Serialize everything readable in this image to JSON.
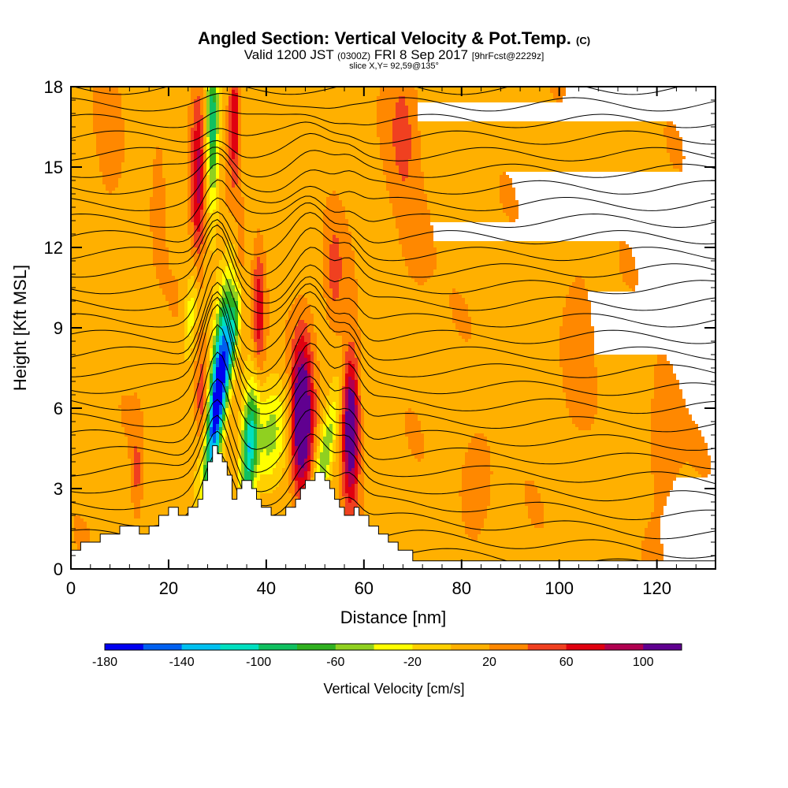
{
  "title_main": "Angled Section: Vertical Velocity & Pot.Temp.",
  "title_unit": "(C)",
  "subtitle_valid": "Valid 1200 JST",
  "subtitle_utc": "(0300Z)",
  "subtitle_date": "FRI 8 Sep 2017",
  "subtitle_fcst": "[9hrFcst@2229z]",
  "slice_label": "slice X,Y= 92,59@135°",
  "chart_data": {
    "type": "heatmap",
    "xlabel": "Distance [nm]",
    "ylabel": "Height [Kft MSL]",
    "xlim": [
      0,
      132
    ],
    "ylim": [
      0,
      18
    ],
    "x_ticks": [
      "0",
      "20",
      "40",
      "60",
      "80",
      "100",
      "120"
    ],
    "y_ticks": [
      "0",
      "3",
      "6",
      "9",
      "12",
      "15",
      "18"
    ],
    "colorbar": {
      "label": "Vertical Velocity [cm/s]",
      "ticks": [
        "-180",
        "-140",
        "-100",
        "-60",
        "-20",
        "20",
        "60",
        "100"
      ],
      "levels": [
        -180,
        -160,
        -140,
        -120,
        -100,
        -80,
        -60,
        -40,
        -20,
        0,
        20,
        40,
        60,
        80,
        100,
        120
      ],
      "colors": [
        "#0000f0",
        "#0060f0",
        "#00c0f0",
        "#00e0c0",
        "#10c060",
        "#30b020",
        "#90d020",
        "#ffff00",
        "#ffd000",
        "#ffb000",
        "#ff8800",
        "#f04020",
        "#e00010",
        "#b00050",
        "#600090"
      ]
    },
    "velocity_features": [
      {
        "x": 30,
        "z": 7.5,
        "w": -180
      },
      {
        "x": 37,
        "z": 5,
        "w": -140
      },
      {
        "x": 29,
        "z": 17,
        "w": -100
      },
      {
        "x": 47,
        "z": 5.5,
        "w": 110
      },
      {
        "x": 57.5,
        "z": 5.3,
        "w": 100
      },
      {
        "x": 26,
        "z": 14.5,
        "w": 70
      },
      {
        "x": 38,
        "z": 9.5,
        "w": 60
      },
      {
        "x": 33,
        "z": 17,
        "w": 60
      }
    ],
    "theta_contours": {
      "count": 29,
      "unit": "C"
    },
    "terrain": [
      [
        0,
        0.7
      ],
      [
        2,
        1
      ],
      [
        6,
        1.3
      ],
      [
        10,
        1.6
      ],
      [
        14,
        1.3
      ],
      [
        16,
        1.6
      ],
      [
        18,
        2
      ],
      [
        20,
        2.3
      ],
      [
        22,
        2
      ],
      [
        23,
        2
      ],
      [
        24,
        2.3
      ],
      [
        26,
        2.6
      ],
      [
        27,
        3.3
      ],
      [
        28,
        4
      ],
      [
        29,
        4.6
      ],
      [
        30,
        4.3
      ],
      [
        31,
        4
      ],
      [
        32,
        3.5
      ],
      [
        33,
        2.6
      ],
      [
        34,
        3
      ],
      [
        35,
        3.3
      ],
      [
        36,
        3.3
      ],
      [
        37,
        3
      ],
      [
        38,
        2.6
      ],
      [
        39,
        2.3
      ],
      [
        40,
        2.3
      ],
      [
        41,
        2
      ],
      [
        43,
        2
      ],
      [
        44,
        2.3
      ],
      [
        46,
        2.6
      ],
      [
        47,
        3
      ],
      [
        48,
        3.3
      ],
      [
        50,
        3.6
      ],
      [
        52,
        3.3
      ],
      [
        53,
        3
      ],
      [
        54,
        2.6
      ],
      [
        55,
        2.3
      ],
      [
        56,
        2
      ],
      [
        57,
        2
      ],
      [
        58,
        2.3
      ],
      [
        59,
        2
      ],
      [
        61,
        1.6
      ],
      [
        63,
        1.3
      ],
      [
        65,
        1
      ],
      [
        67,
        0.7
      ],
      [
        70,
        0.3
      ],
      [
        72,
        0.3
      ],
      [
        132,
        0.3
      ]
    ]
  }
}
